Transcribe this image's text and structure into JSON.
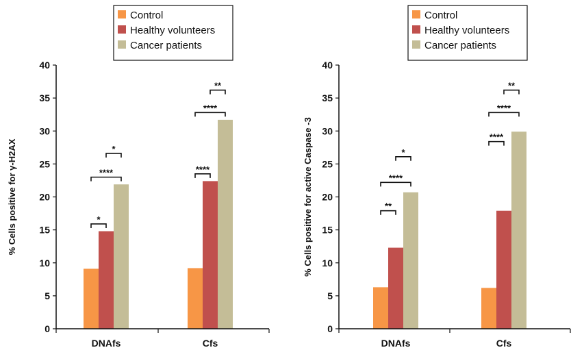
{
  "chart_data": [
    {
      "type": "bar",
      "categories": [
        "DNAfs",
        "Cfs"
      ],
      "ylabel": "%  Cells positive for γ-H2AX",
      "ylim": [
        0,
        40
      ],
      "yticks": [
        0,
        5,
        10,
        15,
        20,
        25,
        30,
        35,
        40
      ],
      "legend": "top",
      "grid": false,
      "series": [
        {
          "name": "Control",
          "color": "#F79646",
          "values": [
            9.1,
            9.2
          ]
        },
        {
          "name": "Healthy volunteers",
          "color": "#C0504D",
          "values": [
            14.8,
            22.4
          ]
        },
        {
          "name": "Cancer patients",
          "color": "#C4BD97",
          "values": [
            21.9,
            31.7
          ]
        }
      ],
      "significance": [
        {
          "category": 0,
          "from": 0,
          "to": 1,
          "label": "*",
          "y": 15.9
        },
        {
          "category": 0,
          "from": 0,
          "to": 2,
          "label": "****",
          "y": 23.0
        },
        {
          "category": 0,
          "from": 1,
          "to": 2,
          "label": "*",
          "y": 26.6
        },
        {
          "category": 1,
          "from": 0,
          "to": 1,
          "label": "****",
          "y": 23.5
        },
        {
          "category": 1,
          "from": 0,
          "to": 2,
          "label": "****",
          "y": 32.8
        },
        {
          "category": 1,
          "from": 1,
          "to": 2,
          "label": "**",
          "y": 36.2
        }
      ]
    },
    {
      "type": "bar",
      "categories": [
        "DNAfs",
        "Cfs"
      ],
      "ylabel": "%  Cells positive for active Caspase -3",
      "ylim": [
        0,
        40
      ],
      "yticks": [
        0,
        5,
        10,
        15,
        20,
        25,
        30,
        35,
        40
      ],
      "legend": "top",
      "grid": false,
      "series": [
        {
          "name": "Control",
          "color": "#F79646",
          "values": [
            6.3,
            6.2
          ]
        },
        {
          "name": "Healthy volunteers",
          "color": "#C0504D",
          "values": [
            12.3,
            17.9
          ]
        },
        {
          "name": "Cancer patients",
          "color": "#C4BD97",
          "values": [
            20.7,
            29.9
          ]
        }
      ],
      "significance": [
        {
          "category": 0,
          "from": 0,
          "to": 1,
          "label": "**",
          "y": 17.9
        },
        {
          "category": 0,
          "from": 0,
          "to": 2,
          "label": "****",
          "y": 22.2
        },
        {
          "category": 0,
          "from": 1,
          "to": 2,
          "label": "*",
          "y": 26.1
        },
        {
          "category": 1,
          "from": 0,
          "to": 1,
          "label": "****",
          "y": 28.4
        },
        {
          "category": 1,
          "from": 0,
          "to": 2,
          "label": "****",
          "y": 32.8
        },
        {
          "category": 1,
          "from": 1,
          "to": 2,
          "label": "**",
          "y": 36.2
        }
      ]
    }
  ]
}
